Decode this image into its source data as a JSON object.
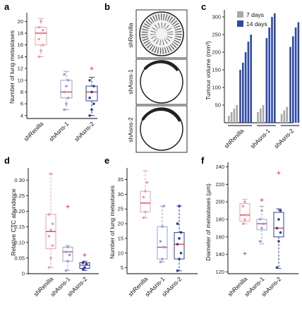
{
  "panel_labels": [
    "a",
    "b",
    "c",
    "d",
    "e",
    "f"
  ],
  "colors": {
    "shRenilla": "#e8a0b4",
    "shAsns1": "#9aa0d6",
    "shAsns2": "#2d3f93",
    "median": "#d8434f",
    "outlier": "#d8434f",
    "gray_bar": "#a9a9a9",
    "blue_bar": "#2f49a6"
  },
  "chart_data": [
    {
      "panel": "a",
      "type": "box",
      "ylabel": "Number of lung metastases",
      "ylim": [
        3.5,
        21
      ],
      "yticks": [
        4,
        6,
        8,
        10,
        12,
        14,
        16,
        18,
        20
      ],
      "categories": [
        "shRenilla",
        "shAsns-1",
        "shAsns-2"
      ],
      "boxes": [
        {
          "name": "shRenilla",
          "whisker_low": 14,
          "q1": 16,
          "median": 18,
          "q3": 19,
          "whisker_high": 20.5,
          "points": [
            14,
            15,
            16,
            17,
            18,
            18.5,
            19,
            20
          ],
          "outliers": []
        },
        {
          "name": "shAsns-1",
          "whisker_low": 5,
          "q1": 7,
          "median": 8,
          "q3": 10,
          "whisker_high": 11.5,
          "points": [
            5,
            6,
            7,
            8,
            9,
            10,
            11
          ],
          "outliers": []
        },
        {
          "name": "shAsns-2",
          "whisker_low": 4,
          "q1": 6.5,
          "median": 8,
          "q3": 9,
          "whisker_high": 10.5,
          "points": [
            4,
            5,
            6,
            7,
            8,
            9,
            10
          ],
          "outliers": [
            12
          ]
        }
      ]
    },
    {
      "panel": "b",
      "type": "image",
      "row_labels": [
        "shRenilla",
        "shAsns-1",
        "shAsns-2"
      ]
    },
    {
      "panel": "c",
      "type": "bar",
      "ylabel": "Tumour volume (mm³)",
      "ylim": [
        0,
        320
      ],
      "yticks": [
        50,
        100,
        150,
        200,
        250,
        300
      ],
      "legend": [
        "7 days",
        "14 days"
      ],
      "legend_position": "top-right",
      "groups": [
        {
          "name": "shRenilla",
          "series_7_days": [
            20,
            30,
            40,
            50
          ],
          "series_14_days": [
            150,
            170,
            200,
            230,
            250
          ]
        },
        {
          "name": "shAsns-1",
          "series_7_days": [
            30,
            40,
            50
          ],
          "series_14_days": [
            240,
            270,
            300,
            310
          ]
        },
        {
          "name": "shAsns-2",
          "series_7_days": [
            25,
            35,
            45
          ],
          "series_14_days": [
            215,
            245,
            270,
            285
          ]
        }
      ]
    },
    {
      "panel": "d",
      "type": "box",
      "ylabel": "Relative CTC abundance",
      "ylim": [
        0,
        0.33
      ],
      "yticks": [
        0,
        0.05,
        0.1,
        0.15,
        0.2,
        0.25,
        0.3
      ],
      "ytick_labels": [
        "0",
        "0.05",
        "0.10",
        "0.15",
        "0.20",
        "0.25",
        "0.30"
      ],
      "categories": [
        "shRenilla",
        "shAsns-1",
        "shAsns-2"
      ],
      "boxes": [
        {
          "name": "shRenilla",
          "whisker_low": 0.02,
          "q1": 0.08,
          "median": 0.135,
          "q3": 0.19,
          "whisker_high": 0.32,
          "points": [
            0.02,
            0.05,
            0.09,
            0.12,
            0.14,
            0.16,
            0.19,
            0.32
          ],
          "outliers": []
        },
        {
          "name": "shAsns-1",
          "whisker_low": 0.01,
          "q1": 0.04,
          "median": 0.07,
          "q3": 0.085,
          "whisker_high": 0.09,
          "points": [
            0.01,
            0.04,
            0.06,
            0.07,
            0.085
          ],
          "outliers": [
            0.215
          ]
        },
        {
          "name": "shAsns-2",
          "whisker_low": 0.01,
          "q1": 0.017,
          "median": 0.027,
          "q3": 0.035,
          "whisker_high": 0.04,
          "points": [
            0.015,
            0.02,
            0.03,
            0.035
          ],
          "outliers": [
            0.06
          ]
        }
      ]
    },
    {
      "panel": "e",
      "type": "box",
      "ylabel": "Number of lung metastases",
      "ylim": [
        3,
        38
      ],
      "yticks": [
        5,
        10,
        15,
        20,
        25,
        30,
        35
      ],
      "categories": [
        "shRenilla",
        "shAsns-1",
        "shAsns-2"
      ],
      "boxes": [
        {
          "name": "shRenilla",
          "whisker_low": 22,
          "q1": 24,
          "median": 27,
          "q3": 31,
          "whisker_high": 38,
          "points": [
            22,
            24,
            27,
            29,
            31,
            34
          ],
          "outliers": []
        },
        {
          "name": "shAsns-1",
          "whisker_low": 7,
          "q1": 8,
          "median": 12,
          "q3": 19,
          "whisker_high": 26,
          "points": [
            7,
            8,
            12,
            14,
            19,
            26
          ],
          "outliers": []
        },
        {
          "name": "shAsns-2",
          "whisker_low": 4,
          "q1": 8,
          "median": 13,
          "q3": 17,
          "whisker_high": 26,
          "points": [
            4,
            8,
            10,
            13,
            15,
            17,
            20,
            26
          ],
          "outliers": []
        }
      ]
    },
    {
      "panel": "f",
      "type": "box",
      "ylabel": "Diameter of metastases (µm)",
      "ylim": [
        118,
        242
      ],
      "yticks": [
        120,
        140,
        160,
        180,
        200,
        220,
        240
      ],
      "categories": [
        "shRenilla",
        "shAsns-1",
        "shAsns-2"
      ],
      "boxes": [
        {
          "name": "shRenilla",
          "whisker_low": 175,
          "q1": 178,
          "median": 185,
          "q3": 198,
          "whisker_high": 203,
          "points": [
            175,
            180,
            185,
            195,
            200
          ],
          "outliers": [
            141
          ]
        },
        {
          "name": "shAsns-1",
          "whisker_low": 152,
          "q1": 168,
          "median": 175,
          "q3": 180,
          "whisker_high": 195,
          "points": [
            155,
            170,
            175,
            180,
            190
          ],
          "outliers": [
            202
          ]
        },
        {
          "name": "shAsns-2",
          "whisker_low": 124,
          "q1": 160,
          "median": 170,
          "q3": 188,
          "whisker_high": 192,
          "points": [
            125,
            155,
            165,
            170,
            180,
            190
          ],
          "outliers": [
            233
          ]
        }
      ]
    }
  ]
}
